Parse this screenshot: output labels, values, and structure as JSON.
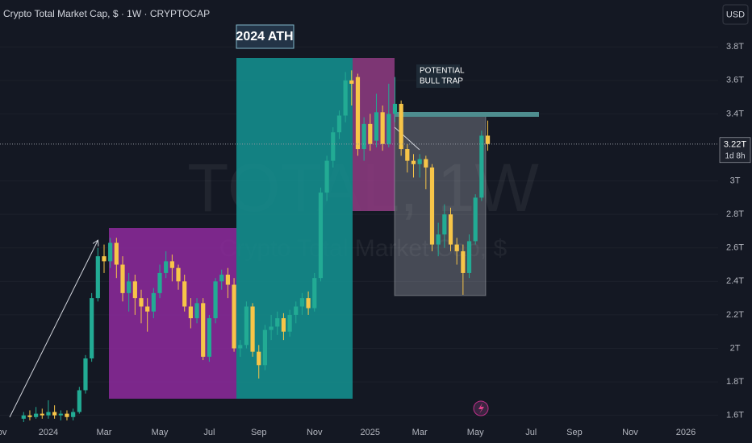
{
  "chart_data": {
    "type": "candlestick",
    "title": "Crypto Total Market Cap, $ · 1W · CRYPTOCAP",
    "currency": "USD",
    "watermark": {
      "symbol": "TOTAL, 1W",
      "description": "Crypto Total Market Cap, $"
    },
    "annotations": {
      "ath": "2024 ATH",
      "trap": [
        "POTENTIAL",
        "BULL TRAP"
      ]
    },
    "last_price": {
      "value": 3.22,
      "label": "3.22T"
    },
    "countdown": "1d 8h",
    "up_color": "#22ab94",
    "down_color": "#f7c548",
    "grid": true,
    "ylim": [
      1.56,
      4.08
    ],
    "yticks": [
      {
        "value": 1.6,
        "label": "1.6T"
      },
      {
        "value": 1.8,
        "label": "1.8T"
      },
      {
        "value": 2,
        "label": "2T"
      },
      {
        "value": 2.2,
        "label": "2.2T"
      },
      {
        "value": 2.4,
        "label": "2.4T"
      },
      {
        "value": 2.6,
        "label": "2.6T"
      },
      {
        "value": 2.8,
        "label": "2.8T"
      },
      {
        "value": 3,
        "label": "3T"
      },
      {
        "value": 3.4,
        "label": "3.4T"
      },
      {
        "value": 3.6,
        "label": "3.6T"
      },
      {
        "value": 3.8,
        "label": "3.8T"
      }
    ],
    "categories": [
      "Nov",
      null,
      null,
      null,
      null,
      null,
      null,
      null,
      "2024",
      null,
      null,
      null,
      null,
      null,
      null,
      null,
      null,
      "Mar",
      null,
      null,
      null,
      null,
      null,
      null,
      null,
      null,
      "May",
      null,
      null,
      null,
      null,
      null,
      null,
      null,
      "Jul",
      null,
      null,
      null,
      null,
      null,
      null,
      null,
      "Sep",
      null,
      null,
      null,
      null,
      null,
      null,
      null,
      null,
      "Nov",
      null,
      null,
      null,
      null,
      null,
      null,
      null,
      null,
      "2025",
      null,
      null,
      null,
      null,
      null,
      null,
      null,
      "Mar",
      null,
      null,
      null,
      null,
      null,
      null,
      null,
      null,
      "May",
      null,
      null,
      null,
      null,
      null,
      null,
      null,
      null,
      "Jul",
      null,
      null,
      null,
      null,
      null,
      null,
      "Sep",
      null,
      null,
      null,
      null,
      null,
      null,
      null,
      null,
      "Nov",
      null,
      null,
      null,
      null,
      null,
      null,
      null,
      null,
      "2026"
    ],
    "open": [
      null,
      null,
      null,
      null,
      1.58,
      1.6,
      1.59,
      1.61,
      1.6,
      1.62,
      1.6,
      1.61,
      1.59,
      1.62,
      1.75,
      1.94,
      2.3,
      2.55,
      2.52,
      2.63,
      2.5,
      2.33,
      2.4,
      2.3,
      2.25,
      2.22,
      2.33,
      2.45,
      2.52,
      2.48,
      2.4,
      2.25,
      2.18,
      2.27,
      1.95,
      2.18,
      2.4,
      2.44,
      2.38,
      2.0,
      2.02,
      2.25,
      1.98,
      1.9,
      2.11,
      2.13,
      2.18,
      2.1,
      2.2,
      2.25,
      2.3,
      2.24,
      2.42,
      2.93,
      3.12,
      3.29,
      3.39,
      3.6,
      3.62,
      3.19,
      3.34,
      3.24,
      3.41,
      3.22,
      3.4,
      3.46,
      3.19,
      3.12,
      3.1,
      3.13,
      3.08,
      2.62,
      2.68,
      2.8,
      2.62,
      2.58,
      2.45,
      2.64,
      2.9,
      3.27,
      null,
      null,
      null,
      null,
      null,
      null,
      null,
      null,
      null,
      null,
      null,
      null,
      null,
      null,
      null,
      null,
      null,
      null,
      null,
      null,
      null,
      null,
      null,
      null,
      null,
      null,
      null,
      null,
      null,
      null,
      null,
      null
    ],
    "high": [
      null,
      null,
      null,
      null,
      1.62,
      1.63,
      1.65,
      1.64,
      1.69,
      1.66,
      1.63,
      1.63,
      1.64,
      1.77,
      1.96,
      2.33,
      2.6,
      2.62,
      2.66,
      2.66,
      2.55,
      2.45,
      2.44,
      2.35,
      2.3,
      2.36,
      2.5,
      2.58,
      2.56,
      2.5,
      2.44,
      2.3,
      2.3,
      2.3,
      2.2,
      2.42,
      2.47,
      2.48,
      2.42,
      2.05,
      2.28,
      2.27,
      2.02,
      2.14,
      2.2,
      2.22,
      2.21,
      2.23,
      2.28,
      2.33,
      2.34,
      2.45,
      2.96,
      3.15,
      3.32,
      3.42,
      3.65,
      3.66,
      3.64,
      3.38,
      3.4,
      3.52,
      3.45,
      3.58,
      3.62,
      3.48,
      3.22,
      3.16,
      3.16,
      3.15,
      3.1,
      2.75,
      2.86,
      2.84,
      2.66,
      2.62,
      2.68,
      2.92,
      3.3,
      3.36,
      null,
      null,
      null,
      null,
      null,
      null,
      null,
      null,
      null,
      null,
      null,
      null,
      null,
      null,
      null,
      null,
      null,
      null,
      null,
      null,
      null,
      null,
      null,
      null,
      null,
      null,
      null,
      null,
      null,
      null,
      null,
      null
    ],
    "low": [
      null,
      null,
      null,
      null,
      1.56,
      1.57,
      1.58,
      1.58,
      1.58,
      1.58,
      1.57,
      1.57,
      1.57,
      1.61,
      1.73,
      1.92,
      2.28,
      2.45,
      2.48,
      2.42,
      2.28,
      2.22,
      2.2,
      2.15,
      2.1,
      2.18,
      2.3,
      2.42,
      2.4,
      2.35,
      2.22,
      2.12,
      2.15,
      1.93,
      1.92,
      2.15,
      2.35,
      2.3,
      1.98,
      1.95,
      2.0,
      1.95,
      1.82,
      1.87,
      2.05,
      2.08,
      2.05,
      2.07,
      2.15,
      2.2,
      2.2,
      2.22,
      2.4,
      2.88,
      3.08,
      3.25,
      3.35,
      3.45,
      3.15,
      3.12,
      3.18,
      3.2,
      3.18,
      3.2,
      3.35,
      3.15,
      3.05,
      3.02,
      3.02,
      2.95,
      2.58,
      2.55,
      2.6,
      2.58,
      2.5,
      2.32,
      2.42,
      2.62,
      2.88,
      3.18,
      null,
      null,
      null,
      null,
      null,
      null,
      null,
      null,
      null,
      null,
      null,
      null,
      null,
      null,
      null,
      null,
      null,
      null,
      null,
      null,
      null,
      null,
      null,
      null,
      null,
      null,
      null,
      null,
      null,
      null,
      null,
      null
    ],
    "close": [
      null,
      null,
      null,
      null,
      1.6,
      1.59,
      1.61,
      1.6,
      1.62,
      1.6,
      1.61,
      1.59,
      1.62,
      1.75,
      1.94,
      2.3,
      2.55,
      2.52,
      2.63,
      2.5,
      2.33,
      2.4,
      2.3,
      2.25,
      2.22,
      2.33,
      2.45,
      2.52,
      2.48,
      2.4,
      2.25,
      2.18,
      2.27,
      1.95,
      2.18,
      2.4,
      2.44,
      2.38,
      2.0,
      2.02,
      2.25,
      1.98,
      1.9,
      2.11,
      2.13,
      2.18,
      2.1,
      2.2,
      2.25,
      2.3,
      2.24,
      2.42,
      2.93,
      3.12,
      3.29,
      3.39,
      3.6,
      3.58,
      3.19,
      3.34,
      3.22,
      3.41,
      3.22,
      3.4,
      3.46,
      3.19,
      3.12,
      3.1,
      3.13,
      3.08,
      2.62,
      2.68,
      2.8,
      2.62,
      2.58,
      2.45,
      2.64,
      2.9,
      3.27,
      3.22,
      null,
      null,
      null,
      null,
      null,
      null,
      null,
      null,
      null,
      null,
      null,
      null,
      null,
      null,
      null,
      null,
      null,
      null,
      null,
      null,
      null,
      null,
      null,
      null,
      null,
      null,
      null,
      null,
      null,
      null,
      null,
      null
    ]
  }
}
